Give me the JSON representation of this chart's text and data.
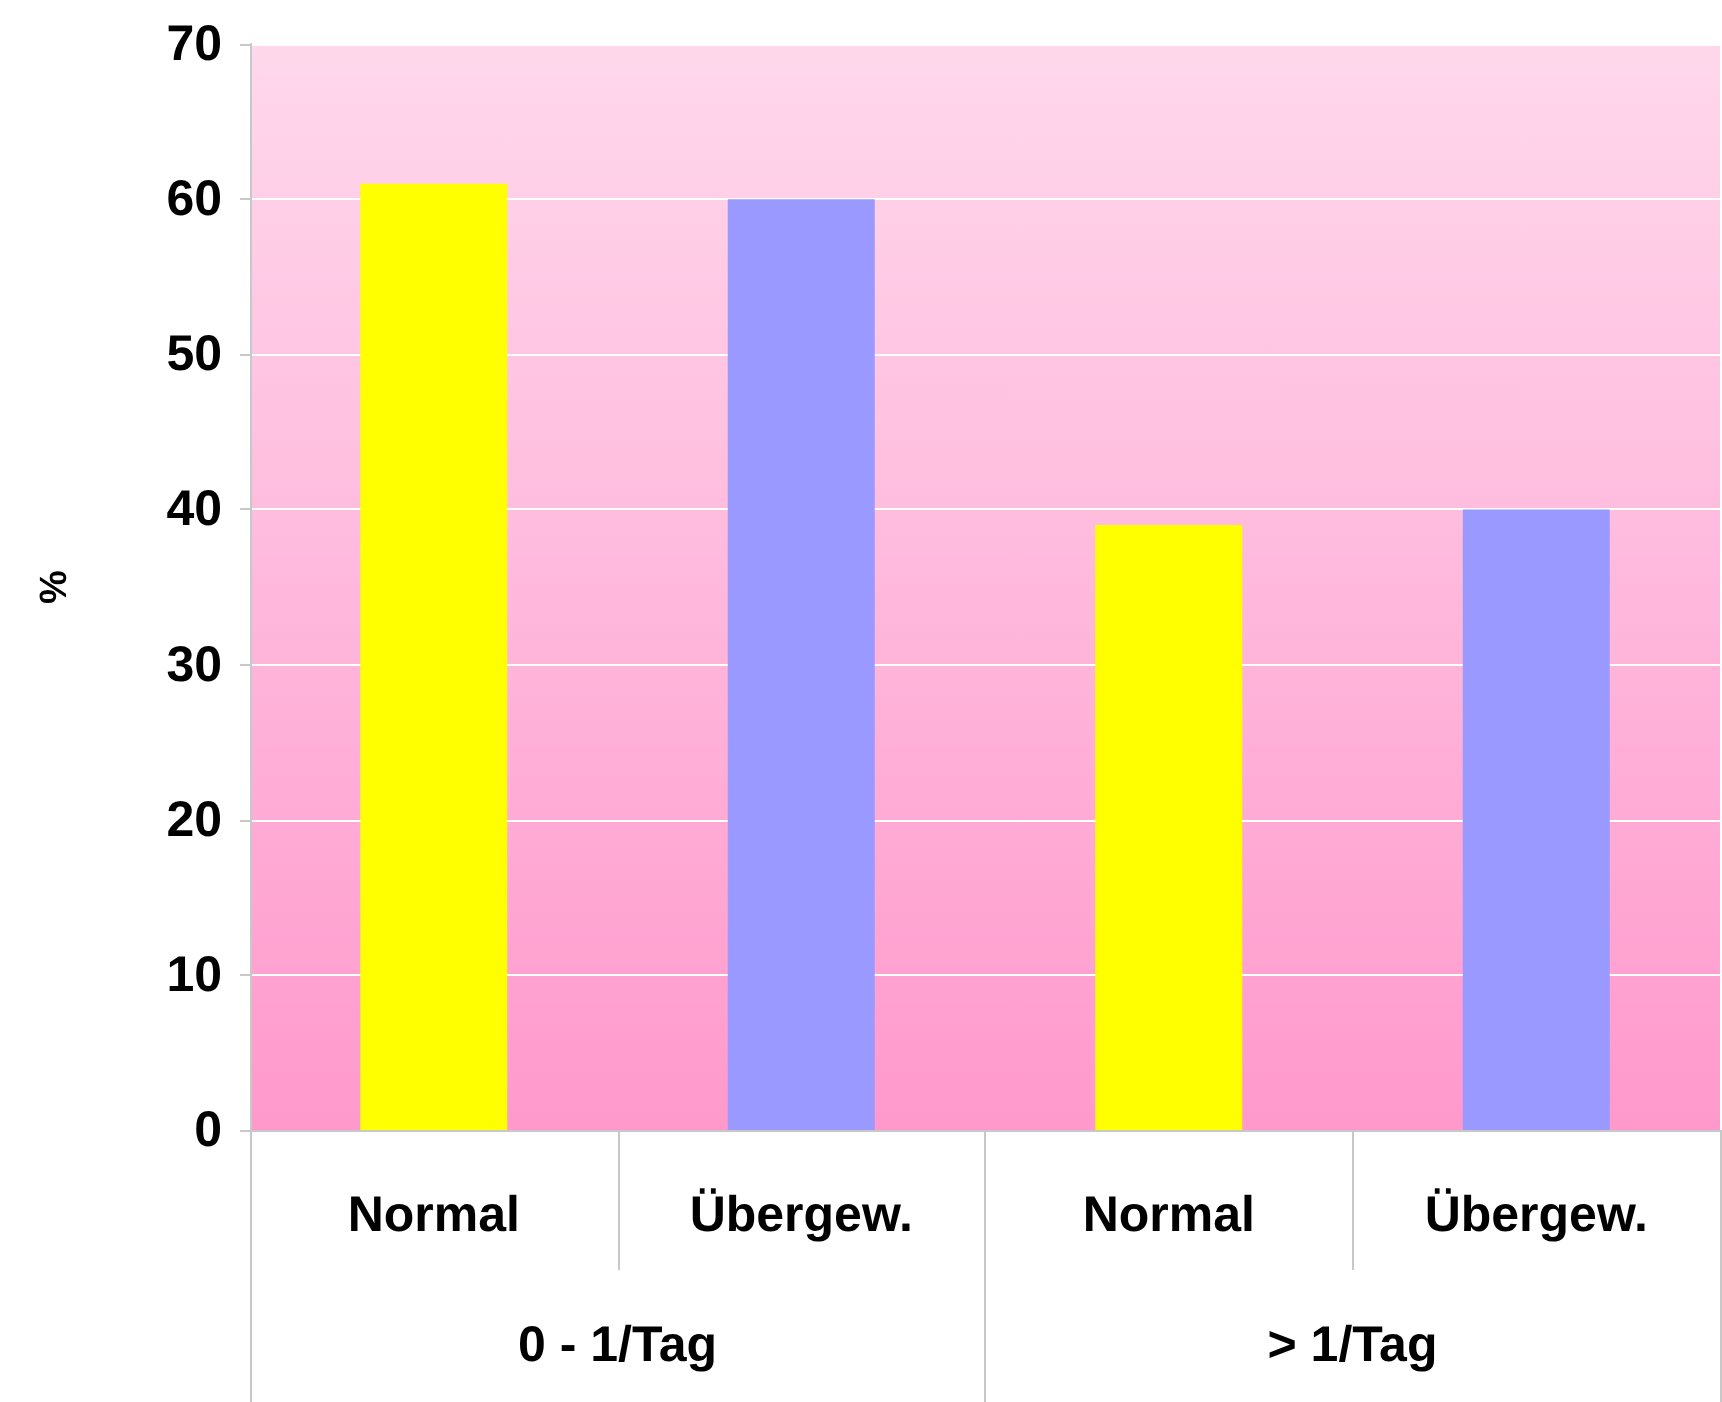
{
  "chart_data": {
    "type": "bar",
    "ylabel": "%",
    "categories": [
      "Normal",
      "Übergew.",
      "Normal",
      "Übergew."
    ],
    "values": [
      61,
      60,
      39,
      40
    ],
    "colors": [
      "#ffff00",
      "#9999ff",
      "#ffff00",
      "#9999ff"
    ],
    "annotations": [
      "0 - 1/Tag",
      "> 1/Tag"
    ],
    "ylim": [
      0,
      70
    ],
    "yticks": [
      0,
      10,
      20,
      30,
      40,
      50,
      60,
      70
    ],
    "grid": "y"
  }
}
